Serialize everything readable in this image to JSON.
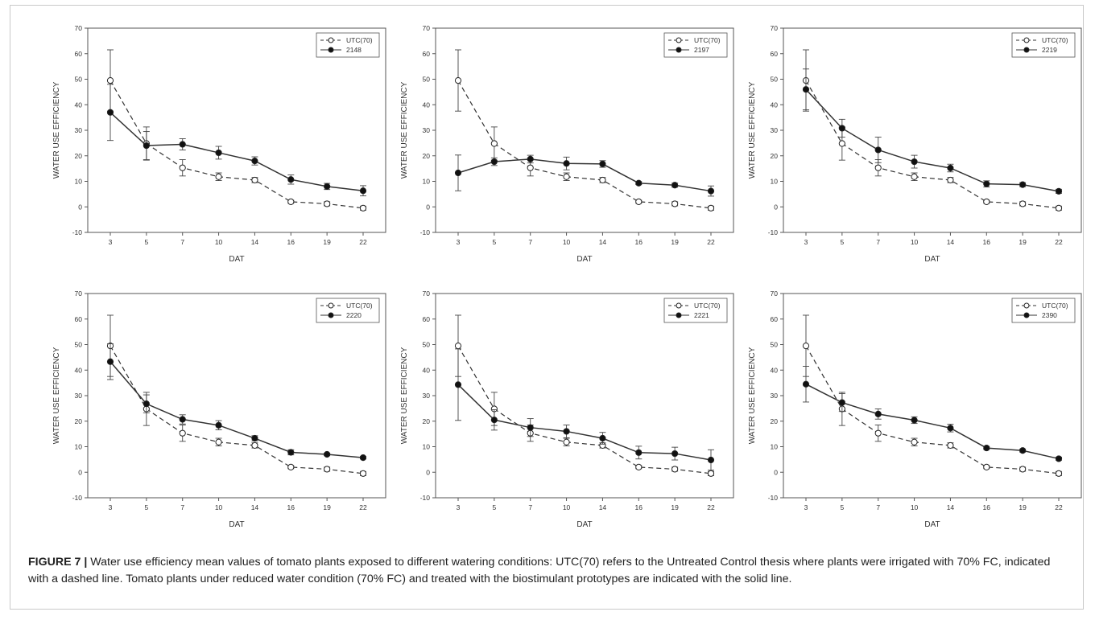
{
  "figure": {
    "caption_label": "FIGURE 7 |",
    "caption_text": " Water use efficiency mean values of tomato plants exposed to different watering conditions: UTC(70) refers to the Untreated Control thesis where plants were irrigated with 70% FC, indicated with a dashed line. Tomato plants under reduced water condition (70% FC) and treated with the biostimulant prototypes are indicated with the solid line."
  },
  "chart_data": [
    {
      "type": "line",
      "xlabel": "DAT",
      "ylabel": "WATER USE EFFICIENCY",
      "ylim": [
        -10,
        70
      ],
      "yticks": [
        -10,
        0,
        10,
        20,
        30,
        40,
        50,
        60,
        70
      ],
      "categories": [
        "3",
        "5",
        "7",
        "10",
        "14",
        "16",
        "19",
        "22"
      ],
      "legend_position": "top-right",
      "series": [
        {
          "name": "UTC(70)",
          "style": "dashed-open-circle",
          "values": [
            49.5,
            24.8,
            15.3,
            11.8,
            10.5,
            2.0,
            1.2,
            -0.5
          ],
          "errors": [
            12,
            6.5,
            3.2,
            1.5,
            1.0,
            0.6,
            0.8,
            0.8
          ]
        },
        {
          "name": "2148",
          "style": "solid-filled-circle",
          "values": [
            37.0,
            24.0,
            24.5,
            21.2,
            18.0,
            10.7,
            8.0,
            6.3
          ],
          "errors": [
            11,
            5.5,
            2.2,
            2.5,
            1.6,
            1.8,
            1.2,
            2.0
          ]
        }
      ]
    },
    {
      "type": "line",
      "xlabel": "DAT",
      "ylabel": "WATER USE EFFICIENCY",
      "ylim": [
        -10,
        70
      ],
      "yticks": [
        -10,
        0,
        10,
        20,
        30,
        40,
        50,
        60,
        70
      ],
      "categories": [
        "3",
        "5",
        "7",
        "10",
        "14",
        "16",
        "19",
        "22"
      ],
      "legend_position": "top-right",
      "series": [
        {
          "name": "UTC(70)",
          "style": "dashed-open-circle",
          "values": [
            49.5,
            24.8,
            15.3,
            11.8,
            10.5,
            2.0,
            1.2,
            -0.5
          ],
          "errors": [
            12,
            6.5,
            3.2,
            1.5,
            1.0,
            0.6,
            0.8,
            0.8
          ]
        },
        {
          "name": "2197",
          "style": "solid-filled-circle",
          "values": [
            13.3,
            17.7,
            18.7,
            17.0,
            16.8,
            9.3,
            8.5,
            6.2
          ],
          "errors": [
            7,
            1.5,
            1.5,
            2.5,
            1.3,
            0.6,
            0.8,
            2.0
          ]
        }
      ]
    },
    {
      "type": "line",
      "xlabel": "DAT",
      "ylabel": "WATER USE EFFICIENCY",
      "ylim": [
        -10,
        70
      ],
      "yticks": [
        -10,
        0,
        10,
        20,
        30,
        40,
        50,
        60,
        70
      ],
      "categories": [
        "3",
        "5",
        "7",
        "10",
        "14",
        "16",
        "19",
        "22"
      ],
      "legend_position": "top-right",
      "series": [
        {
          "name": "UTC(70)",
          "style": "dashed-open-circle",
          "values": [
            49.5,
            24.8,
            15.3,
            11.8,
            10.5,
            2.0,
            1.2,
            -0.5
          ],
          "errors": [
            12,
            6.5,
            3.2,
            1.5,
            1.0,
            0.6,
            0.8,
            0.8
          ]
        },
        {
          "name": "2219",
          "style": "solid-filled-circle",
          "values": [
            46.0,
            30.8,
            22.3,
            17.7,
            15.2,
            9.0,
            8.7,
            6.1
          ],
          "errors": [
            8,
            3.5,
            5.0,
            2.5,
            1.5,
            1.2,
            0.8,
            0.8
          ]
        }
      ]
    },
    {
      "type": "line",
      "xlabel": "DAT",
      "ylabel": "WATER USE EFFICIENCY",
      "ylim": [
        -10,
        70
      ],
      "yticks": [
        -10,
        0,
        10,
        20,
        30,
        40,
        50,
        60,
        70
      ],
      "categories": [
        "3",
        "5",
        "7",
        "10",
        "14",
        "16",
        "19",
        "22"
      ],
      "legend_position": "top-right",
      "series": [
        {
          "name": "UTC(70)",
          "style": "dashed-open-circle",
          "values": [
            49.5,
            24.8,
            15.3,
            11.8,
            10.5,
            2.0,
            1.2,
            -0.5
          ],
          "errors": [
            12,
            6.5,
            3.2,
            1.5,
            1.0,
            0.6,
            0.8,
            0.8
          ]
        },
        {
          "name": "2220",
          "style": "solid-filled-circle",
          "values": [
            43.3,
            26.8,
            20.7,
            18.4,
            13.3,
            7.8,
            7.0,
            5.7
          ],
          "errors": [
            7,
            3.5,
            1.8,
            1.8,
            1.0,
            1.0,
            0.5,
            0.5
          ]
        }
      ]
    },
    {
      "type": "line",
      "xlabel": "DAT",
      "ylabel": "WATER USE EFFICIENCY",
      "ylim": [
        -10,
        70
      ],
      "yticks": [
        -10,
        0,
        10,
        20,
        30,
        40,
        50,
        60,
        70
      ],
      "categories": [
        "3",
        "5",
        "7",
        "10",
        "14",
        "16",
        "19",
        "22"
      ],
      "legend_position": "top-right",
      "series": [
        {
          "name": "UTC(70)",
          "style": "dashed-open-circle",
          "values": [
            49.5,
            24.8,
            15.3,
            11.8,
            10.5,
            2.0,
            1.2,
            -0.5
          ],
          "errors": [
            12,
            6.5,
            3.2,
            1.5,
            1.0,
            0.6,
            0.8,
            0.8
          ]
        },
        {
          "name": "2221",
          "style": "solid-filled-circle",
          "values": [
            34.3,
            20.5,
            17.5,
            16.0,
            13.3,
            7.7,
            7.3,
            4.8
          ],
          "errors": [
            14,
            4.0,
            3.5,
            2.5,
            2.3,
            2.5,
            2.5,
            4.0
          ]
        }
      ]
    },
    {
      "type": "line",
      "xlabel": "DAT",
      "ylabel": "WATER USE EFFICIENCY",
      "ylim": [
        -10,
        70
      ],
      "yticks": [
        -10,
        0,
        10,
        20,
        30,
        40,
        50,
        60,
        70
      ],
      "categories": [
        "3",
        "5",
        "7",
        "10",
        "14",
        "16",
        "19",
        "22"
      ],
      "legend_position": "top-right",
      "series": [
        {
          "name": "UTC(70)",
          "style": "dashed-open-circle",
          "values": [
            49.5,
            24.8,
            15.3,
            11.8,
            10.5,
            2.0,
            1.2,
            -0.5
          ],
          "errors": [
            12,
            6.5,
            3.2,
            1.5,
            1.0,
            0.6,
            0.8,
            0.8
          ]
        },
        {
          "name": "2390",
          "style": "solid-filled-circle",
          "values": [
            34.5,
            27.3,
            22.8,
            20.4,
            17.3,
            9.5,
            8.5,
            5.3
          ],
          "errors": [
            7,
            3.5,
            2.0,
            1.3,
            1.5,
            0.6,
            0.6,
            0.6
          ]
        }
      ]
    }
  ]
}
